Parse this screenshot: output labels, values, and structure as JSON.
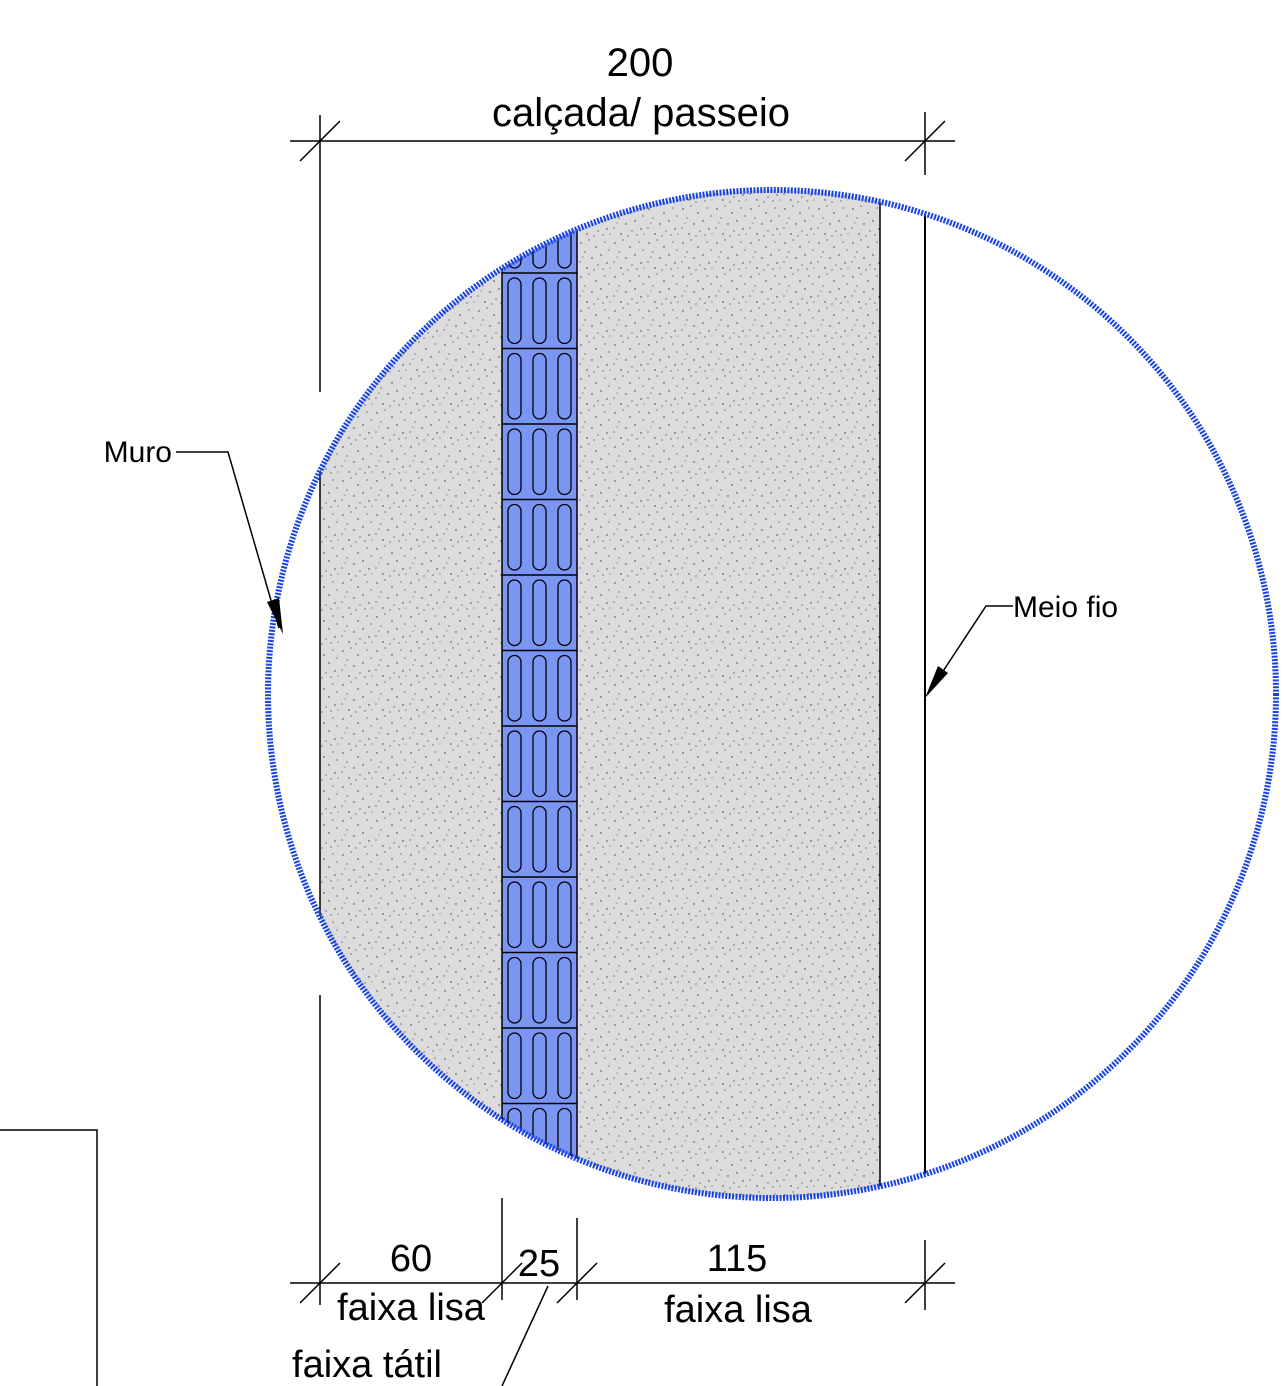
{
  "dimensions": {
    "total": {
      "value": "200",
      "label": "calçada/ passeio"
    },
    "left": {
      "value": "60",
      "label": "faixa lisa"
    },
    "tactile": {
      "value": "25",
      "label": "faixa tátil"
    },
    "right": {
      "value": "115",
      "label": "faixa lisa"
    }
  },
  "callouts": {
    "wall": "Muro",
    "curb": "Meio fio"
  },
  "colors": {
    "circle_outline": "#1a44e0",
    "tactile_fill": "#7b95f3",
    "concrete_fill": "#dcdcdc",
    "line": "#000000"
  }
}
